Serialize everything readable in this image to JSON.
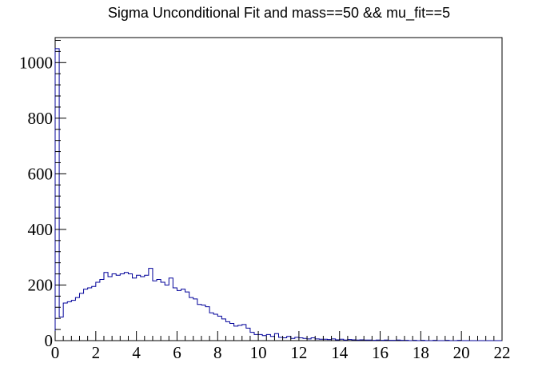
{
  "chart_data": {
    "type": "bar",
    "title": "Sigma Unconditional Fit and mass==50 && mu_fit==5",
    "xlabel": "",
    "ylabel": "",
    "xlim": [
      0,
      22
    ],
    "ylim": [
      0,
      1090
    ],
    "bin_width": 0.2,
    "x_ticks": [
      0,
      2,
      4,
      6,
      8,
      10,
      12,
      14,
      16,
      18,
      20,
      22
    ],
    "x_tick_labels": [
      "0",
      "2",
      "4",
      "6",
      "8",
      "10",
      "12",
      "14",
      "16",
      "18",
      "20",
      "22"
    ],
    "y_ticks": [
      0,
      200,
      400,
      600,
      800,
      1000
    ],
    "y_tick_labels": [
      "0",
      "200",
      "400",
      "600",
      "800",
      "1000"
    ],
    "grid": false,
    "legend": "none",
    "bin_edges_start": 0,
    "values": [
      1050,
      85,
      135,
      140,
      145,
      155,
      170,
      185,
      190,
      195,
      210,
      220,
      245,
      230,
      240,
      235,
      240,
      245,
      240,
      225,
      235,
      230,
      235,
      260,
      215,
      220,
      210,
      200,
      225,
      190,
      180,
      185,
      175,
      155,
      150,
      130,
      128,
      122,
      100,
      95,
      88,
      78,
      68,
      62,
      52,
      55,
      58,
      45,
      30,
      22,
      22,
      18,
      22,
      15,
      25,
      12,
      10,
      15,
      8,
      12,
      10,
      8,
      6,
      10,
      6,
      5,
      5,
      4,
      6,
      3,
      5,
      2,
      4,
      3,
      2,
      3,
      2,
      2,
      1,
      2,
      1,
      2,
      1,
      1,
      2,
      1,
      1,
      0,
      1,
      0,
      1,
      0,
      0,
      1,
      0,
      0,
      1,
      0,
      0,
      1,
      0,
      0,
      0,
      0,
      0,
      0,
      0,
      0,
      0,
      0
    ],
    "colors": {
      "line": "#000099",
      "axis": "#000000",
      "background": "#ffffff"
    }
  }
}
